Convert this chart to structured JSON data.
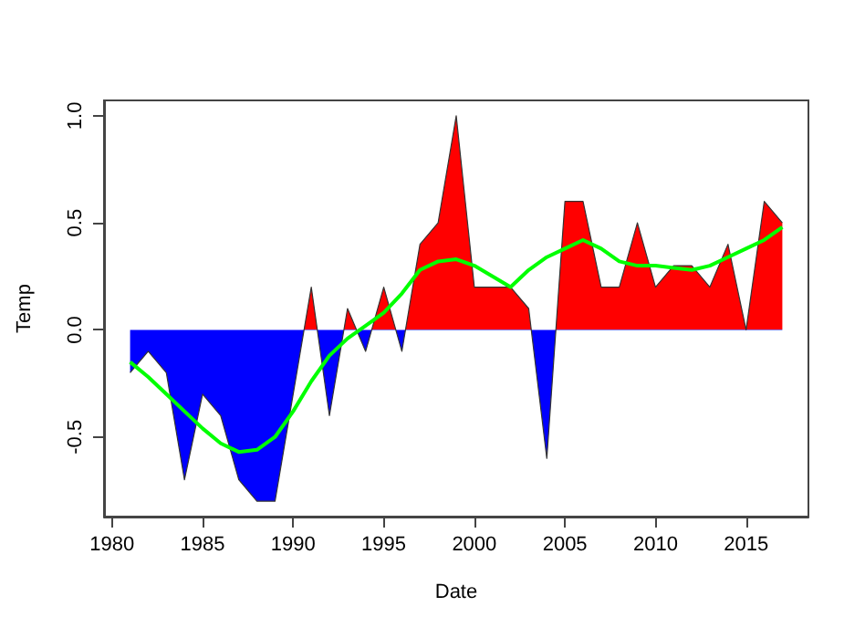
{
  "chart_data": {
    "type": "area",
    "xlabel": "Date",
    "ylabel": "Temp",
    "x": [
      1981,
      1982,
      1983,
      1984,
      1985,
      1986,
      1987,
      1988,
      1989,
      1990,
      1991,
      1992,
      1993,
      1994,
      1995,
      1996,
      1997,
      1998,
      1999,
      2000,
      2001,
      2002,
      2003,
      2004,
      2005,
      2006,
      2007,
      2008,
      2009,
      2010,
      2011,
      2012,
      2013,
      2014,
      2015,
      2016,
      2017
    ],
    "series": [
      {
        "values": [
          -0.2,
          -0.1,
          -0.2,
          -0.7,
          -0.3,
          -0.4,
          -0.7,
          -0.8,
          -0.8,
          -0.3,
          0.2,
          -0.4,
          0.1,
          -0.1,
          0.2,
          -0.1,
          0.4,
          0.5,
          1.0,
          0.2,
          0.2,
          0.2,
          0.1,
          -0.6,
          0.6,
          0.6,
          0.2,
          0.2,
          0.5,
          0.2,
          0.3,
          0.3,
          0.2,
          0.4,
          0.0,
          0.6,
          0.5
        ],
        "colors": [
          "#0000ff",
          "#0000ff",
          "#0000ff",
          "#0000ff",
          "#0000ff",
          "#0000ff",
          "#0000ff",
          "#0000ff",
          "#0000ff",
          "#0000ff",
          "#ff0000",
          "#0000ff",
          "#ff0000",
          "#0000ff",
          "#ff0000",
          "#0000ff",
          "#ff0000",
          "#ff0000",
          "#ff0000",
          "#ff0000",
          "#ff0000",
          "#ff0000",
          "#ff0000",
          "#0000ff",
          "#ff0000",
          "#ff0000",
          "#ff0000",
          "#ff0000",
          "#ff0000",
          "#ff0000",
          "#ff0000",
          "#ff0000",
          "#ff0000",
          "#ff0000",
          "#ff0000",
          "#ff0000",
          "#ff0000"
        ]
      },
      {
        "type": "line",
        "color": "#00ff00",
        "values": [
          -0.15,
          -0.22,
          -0.3,
          -0.38,
          -0.46,
          -0.53,
          -0.57,
          -0.56,
          -0.5,
          -0.38,
          -0.24,
          -0.12,
          -0.04,
          0.02,
          0.08,
          0.17,
          0.28,
          0.32,
          0.33,
          0.3,
          0.25,
          0.2,
          0.28,
          0.34,
          0.38,
          0.42,
          0.38,
          0.32,
          0.3,
          0.3,
          0.29,
          0.28,
          0.3,
          0.34,
          0.38,
          0.42,
          0.48
        ]
      }
    ],
    "xlim": [
      1979.56,
      2018.44
    ],
    "xticks": [
      1980,
      1985,
      1990,
      1995,
      2000,
      2005,
      2010,
      2015
    ],
    "ylim": [
      -0.872,
      1.072
    ],
    "yticks": [
      {
        "value": -0.5,
        "label": "-0.5"
      },
      {
        "value": 0,
        "label": "0.0"
      },
      {
        "value": 0.5,
        "label": "0.5"
      },
      {
        "value": 1,
        "label": "1.0"
      }
    ],
    "grid": false,
    "marker": "none",
    "line_style": "solid"
  }
}
